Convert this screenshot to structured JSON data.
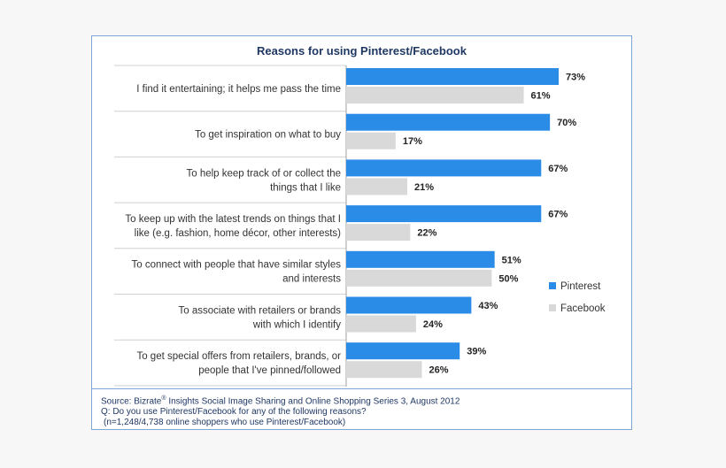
{
  "chart_data": {
    "type": "bar",
    "orientation": "horizontal",
    "title": "Reasons for using Pinterest/Facebook",
    "categories": [
      [
        "I find it entertaining; it helps me pass the time"
      ],
      [
        "To get inspiration on what to buy"
      ],
      [
        "To help keep track of or collect the",
        "things that I like"
      ],
      [
        "To keep up with the latest trends on things that I",
        "like (e.g. fashion, home décor, other interests)"
      ],
      [
        "To connect with people that have similar styles",
        "and interests"
      ],
      [
        "To associate with retailers or brands",
        "with which I identify"
      ],
      [
        "To get special offers from retailers, brands, or",
        "people that I've pinned/followed"
      ]
    ],
    "series": [
      {
        "name": "Pinterest",
        "color": "#2b8ce8",
        "values": [
          73,
          70,
          67,
          67,
          51,
          43,
          39
        ],
        "labels": [
          "73%",
          "70%",
          "67%",
          "67%",
          "51%",
          "43%",
          "39%"
        ]
      },
      {
        "name": "Facebook",
        "color": "#d9d9d9",
        "values": [
          61,
          17,
          21,
          22,
          50,
          24,
          26
        ],
        "labels": [
          "61%",
          "17%",
          "21%",
          "22%",
          "50%",
          "24%",
          "26%"
        ]
      }
    ],
    "xlim": [
      0,
      100
    ],
    "legend_position": "right",
    "grid": false
  },
  "footer": {
    "source_prefix": "Source: Bizrate",
    "source_sup": "®",
    "source_suffix": " Insights Social Image Sharing and Online Shopping Series 3, August 2012",
    "question": "Q: Do you use Pinterest/Facebook for any of the following reasons?",
    "sample": "(n=1,248/4,738 online shoppers who use Pinterest/Facebook)"
  }
}
